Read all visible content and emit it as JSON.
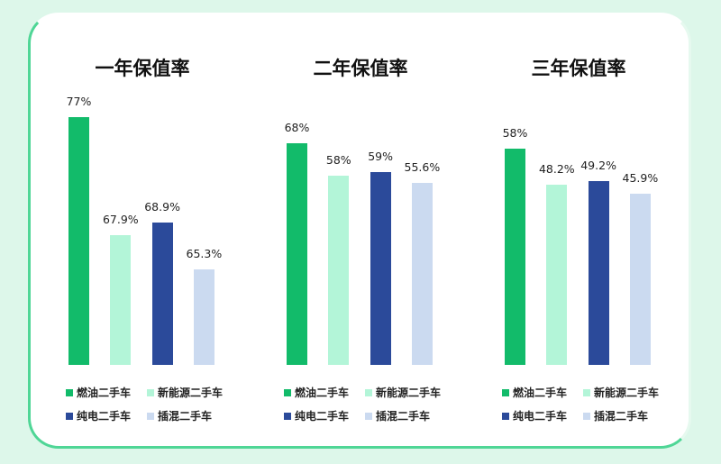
{
  "chart_data": [
    {
      "type": "bar",
      "title": "一年保值率",
      "categories": [
        "燃油二手车",
        "新能源二手车",
        "纯电二手车",
        "插混二手车"
      ],
      "values": [
        77,
        67.9,
        68.9,
        65.3
      ],
      "labels": [
        "77%",
        "67.9%",
        "68.9%",
        "65.3%"
      ],
      "ylim": [
        58,
        78
      ],
      "grid": false,
      "legend": "bottom"
    },
    {
      "type": "bar",
      "title": "二年保值率",
      "categories": [
        "燃油二手车",
        "新能源二手车",
        "纯电二手车",
        "插混二手车"
      ],
      "values": [
        68,
        58,
        59,
        55.6
      ],
      "labels": [
        "68%",
        "58%",
        "59%",
        "55.6%"
      ],
      "ylim": [
        0,
        80
      ],
      "grid": false,
      "legend": "bottom"
    },
    {
      "type": "bar",
      "title": "三年保值率",
      "categories": [
        "燃油二手车",
        "新能源二手车",
        "纯电二手车",
        "插混二手车"
      ],
      "values": [
        58,
        48.2,
        49.2,
        45.9
      ],
      "labels": [
        "58%",
        "48.2%",
        "49.2%",
        "45.9%"
      ],
      "ylim": [
        0,
        70
      ],
      "grid": false,
      "legend": "bottom"
    }
  ],
  "colors": [
    "#12bb6a",
    "#b3f5d8",
    "#2b4a9a",
    "#cbdaf0"
  ]
}
